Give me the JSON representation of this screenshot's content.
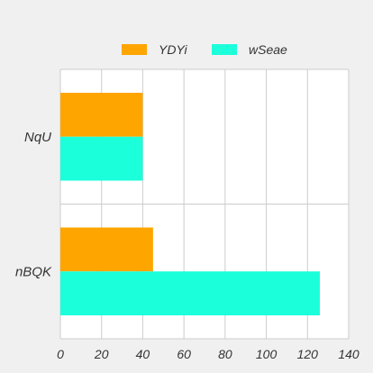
{
  "chart_data": {
    "type": "bar",
    "orientation": "horizontal",
    "categories": [
      "NqU",
      "nBQK"
    ],
    "series": [
      {
        "name": "YDYi",
        "values": [
          40,
          45
        ],
        "color": "#FFA500"
      },
      {
        "name": "wSeae",
        "values": [
          40,
          126
        ],
        "color": "#1CFFDB"
      }
    ],
    "xlim": [
      0,
      140
    ],
    "xticks": [
      0,
      20,
      40,
      60,
      80,
      100,
      120,
      140
    ],
    "grid": true,
    "legend_position": "top"
  }
}
